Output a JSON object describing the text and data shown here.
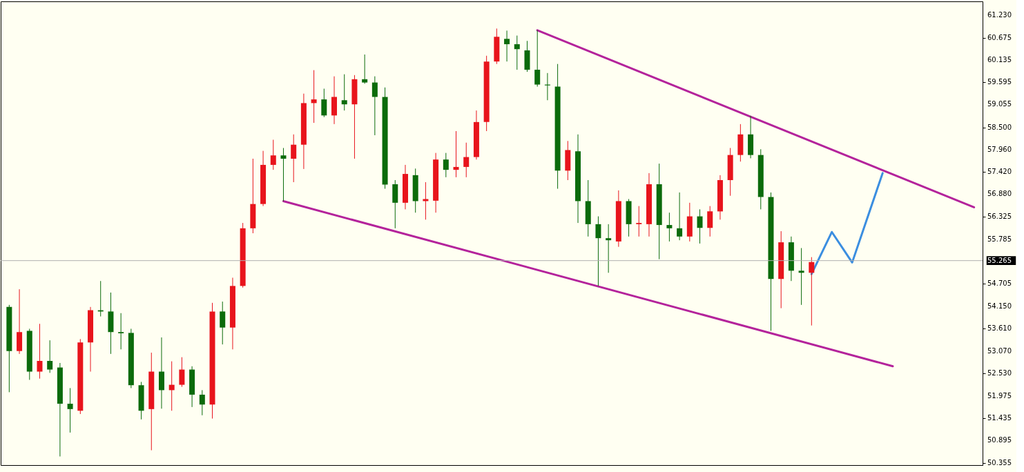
{
  "chart_data": {
    "type": "candlestick",
    "categories": [
      null,
      null,
      null,
      null,
      null,
      null,
      null,
      null,
      null,
      null,
      null,
      null,
      null,
      null,
      null,
      null,
      null,
      null,
      null,
      null,
      null,
      null,
      null,
      null,
      null,
      null,
      null,
      null,
      null,
      null,
      null,
      null,
      null,
      null,
      null,
      null,
      null,
      null,
      null,
      null,
      null,
      null,
      null,
      null,
      null,
      null,
      null,
      null,
      null,
      null,
      null,
      null,
      null,
      null,
      null,
      null,
      null,
      null,
      null,
      null,
      null,
      null,
      null,
      null,
      null,
      null,
      null,
      null,
      null,
      null,
      null,
      null,
      null,
      null,
      null,
      null,
      null,
      null,
      null,
      null,
      null,
      null,
      null,
      null,
      null,
      null,
      null,
      null,
      null,
      null,
      null,
      null,
      null,
      null,
      null,
      null
    ],
    "series": [
      {
        "type": "candlestick",
        "ohlc": [
          [
            54.14,
            54.19,
            52.07,
            53.07
          ],
          [
            53.07,
            54.57,
            53.0,
            53.53
          ],
          [
            53.56,
            53.61,
            52.37,
            52.57
          ],
          [
            52.57,
            53.73,
            52.4,
            52.83
          ],
          [
            52.83,
            53.33,
            52.54,
            52.62
          ],
          [
            52.67,
            52.78,
            50.51,
            51.79
          ],
          [
            51.79,
            52.17,
            51.09,
            51.66
          ],
          [
            51.62,
            53.36,
            51.54,
            53.28
          ],
          [
            53.28,
            54.14,
            52.57,
            54.06
          ],
          [
            54.06,
            54.77,
            53.91,
            54.03
          ],
          [
            54.03,
            54.49,
            53.0,
            53.53
          ],
          [
            53.53,
            53.99,
            53.11,
            53.5
          ],
          [
            53.51,
            53.61,
            52.17,
            52.24
          ],
          [
            52.24,
            52.32,
            51.41,
            51.62
          ],
          [
            51.66,
            53.03,
            50.66,
            52.57
          ],
          [
            52.57,
            53.4,
            51.67,
            52.12
          ],
          [
            52.12,
            52.82,
            51.62,
            52.25
          ],
          [
            52.25,
            52.92,
            52.2,
            52.62
          ],
          [
            52.62,
            52.7,
            51.71,
            52.01
          ],
          [
            52.01,
            52.12,
            51.51,
            51.77
          ],
          [
            51.77,
            54.24,
            51.43,
            54.03
          ],
          [
            54.03,
            54.27,
            53.23,
            53.64
          ],
          [
            53.64,
            54.85,
            53.11,
            54.65
          ],
          [
            54.65,
            56.18,
            54.61,
            56.05
          ],
          [
            56.05,
            57.74,
            55.93,
            56.64
          ],
          [
            56.64,
            57.93,
            56.59,
            57.59
          ],
          [
            57.59,
            58.2,
            57.47,
            57.82
          ],
          [
            57.82,
            58.0,
            56.71,
            57.74
          ],
          [
            57.74,
            58.33,
            57.17,
            58.08
          ],
          [
            58.08,
            59.32,
            57.49,
            59.09
          ],
          [
            59.09,
            59.89,
            58.61,
            59.18
          ],
          [
            59.18,
            59.44,
            58.75,
            58.79
          ],
          [
            58.79,
            59.74,
            58.58,
            59.24
          ],
          [
            59.16,
            59.79,
            58.91,
            59.06
          ],
          [
            59.06,
            59.77,
            57.74,
            59.67
          ],
          [
            59.67,
            60.27,
            59.56,
            59.59
          ],
          [
            59.59,
            59.74,
            58.31,
            59.24
          ],
          [
            59.24,
            59.47,
            57.01,
            57.11
          ],
          [
            57.12,
            57.22,
            56.05,
            56.67
          ],
          [
            56.67,
            57.59,
            56.51,
            57.37
          ],
          [
            57.34,
            57.5,
            56.43,
            56.71
          ],
          [
            56.71,
            57.17,
            56.26,
            56.76
          ],
          [
            56.72,
            57.88,
            56.43,
            57.72
          ],
          [
            57.72,
            57.88,
            57.29,
            57.47
          ],
          [
            57.47,
            58.41,
            57.29,
            57.54
          ],
          [
            57.54,
            58.13,
            57.29,
            57.78
          ],
          [
            57.78,
            58.91,
            57.72,
            58.63
          ],
          [
            58.63,
            60.24,
            58.41,
            60.1
          ],
          [
            60.1,
            60.9,
            60.04,
            60.7
          ],
          [
            60.65,
            60.85,
            60.1,
            60.52
          ],
          [
            60.52,
            60.73,
            59.9,
            60.4
          ],
          [
            60.37,
            60.6,
            59.85,
            59.9
          ],
          [
            59.9,
            60.86,
            59.49,
            59.54
          ],
          [
            59.54,
            59.82,
            59.16,
            59.52
          ],
          [
            59.49,
            60.04,
            57.01,
            57.45
          ],
          [
            57.45,
            58.17,
            57.22,
            57.95
          ],
          [
            57.92,
            58.33,
            56.18,
            56.71
          ],
          [
            56.71,
            57.22,
            55.85,
            56.15
          ],
          [
            56.15,
            56.34,
            54.65,
            55.81
          ],
          [
            55.81,
            56.15,
            54.97,
            55.76
          ],
          [
            55.73,
            56.97,
            55.6,
            56.71
          ],
          [
            56.71,
            56.76,
            55.85,
            56.15
          ],
          [
            56.15,
            56.59,
            55.85,
            56.18
          ],
          [
            56.15,
            57.39,
            55.85,
            57.12
          ],
          [
            57.12,
            57.62,
            55.3,
            56.13
          ],
          [
            56.13,
            56.43,
            55.73,
            56.05
          ],
          [
            56.05,
            56.92,
            55.76,
            55.85
          ],
          [
            55.85,
            56.67,
            55.73,
            56.34
          ],
          [
            56.34,
            56.51,
            55.68,
            56.06
          ],
          [
            56.06,
            56.59,
            55.85,
            56.46
          ],
          [
            56.46,
            57.34,
            56.26,
            57.22
          ],
          [
            57.22,
            58.0,
            56.84,
            57.83
          ],
          [
            57.83,
            58.58,
            57.67,
            58.33
          ],
          [
            58.33,
            58.78,
            57.75,
            57.83
          ],
          [
            57.83,
            57.97,
            56.51,
            56.81
          ],
          [
            56.81,
            56.92,
            53.56,
            54.82
          ],
          [
            54.82,
            55.98,
            54.11,
            55.71
          ],
          [
            55.71,
            55.85,
            54.77,
            55.02
          ],
          [
            55.02,
            55.57,
            54.19,
            54.97
          ],
          [
            54.97,
            55.35,
            53.69,
            55.23
          ],
          null,
          null,
          null,
          null,
          null,
          null,
          null,
          null,
          null,
          null,
          null,
          null,
          null,
          null,
          null,
          null
        ],
        "colors": [
          "#0b6b0b",
          "#e8141c",
          "#0b6b0b",
          "#e8141c",
          "#0b6b0b",
          "#0b6b0b",
          "#0b6b0b",
          "#e8141c",
          "#e8141c",
          "#0b6b0b",
          "#0b6b0b",
          "#0b6b0b",
          "#0b6b0b",
          "#0b6b0b",
          "#e8141c",
          "#0b6b0b",
          "#e8141c",
          "#e8141c",
          "#0b6b0b",
          "#0b6b0b",
          "#e8141c",
          "#0b6b0b",
          "#e8141c",
          "#e8141c",
          "#e8141c",
          "#e8141c",
          "#e8141c",
          "#0b6b0b",
          "#e8141c",
          "#e8141c",
          "#e8141c",
          "#0b6b0b",
          "#e8141c",
          "#0b6b0b",
          "#e8141c",
          "#0b6b0b",
          "#0b6b0b",
          "#0b6b0b",
          "#0b6b0b",
          "#e8141c",
          "#0b6b0b",
          "#e8141c",
          "#e8141c",
          "#0b6b0b",
          "#e8141c",
          "#e8141c",
          "#e8141c",
          "#e8141c",
          "#e8141c",
          "#0b6b0b",
          "#0b6b0b",
          "#0b6b0b",
          "#0b6b0b",
          "#0b6b0b",
          "#0b6b0b",
          "#e8141c",
          "#0b6b0b",
          "#0b6b0b",
          "#0b6b0b",
          "#0b6b0b",
          "#e8141c",
          "#0b6b0b",
          "#e8141c",
          "#e8141c",
          "#0b6b0b",
          "#0b6b0b",
          "#0b6b0b",
          "#e8141c",
          "#0b6b0b",
          "#e8141c",
          "#e8141c",
          "#e8141c",
          "#e8141c",
          "#0b6b0b",
          "#0b6b0b",
          "#0b6b0b",
          "#e8141c",
          "#0b6b0b",
          "#0b6b0b",
          "#e8141c",
          null,
          null,
          null,
          null,
          null,
          null,
          null,
          null,
          null,
          null,
          null,
          null,
          null,
          null,
          null,
          null
        ]
      },
      {
        "type": "line",
        "color": "#b4239b",
        "values": [
          null,
          null,
          null,
          null,
          null,
          null,
          null,
          null,
          null,
          null,
          null,
          null,
          null,
          null,
          null,
          null,
          null,
          null,
          null,
          null,
          null,
          null,
          null,
          null,
          null,
          null,
          null,
          56.71,
          null,
          null,
          null,
          null,
          null,
          null,
          null,
          null,
          null,
          null,
          null,
          null,
          null,
          null,
          null,
          null,
          null,
          null,
          null,
          null,
          null,
          null,
          null,
          null,
          null,
          null,
          null,
          null,
          null,
          null,
          null,
          null,
          null,
          null,
          null,
          null,
          null,
          null,
          null,
          null,
          null,
          null,
          null,
          null,
          null,
          null,
          null,
          null,
          null,
          null,
          null,
          null,
          null,
          null,
          null,
          null,
          null,
          null,
          null,
          52.7,
          null,
          null,
          null,
          null,
          null,
          null,
          null,
          null
        ]
      },
      {
        "type": "line",
        "color": "#b4239b",
        "values": [
          null,
          null,
          null,
          null,
          null,
          null,
          null,
          null,
          null,
          null,
          null,
          null,
          null,
          null,
          null,
          null,
          null,
          null,
          null,
          null,
          null,
          null,
          null,
          null,
          null,
          null,
          null,
          null,
          null,
          null,
          null,
          null,
          null,
          null,
          null,
          null,
          null,
          null,
          null,
          null,
          null,
          null,
          null,
          null,
          null,
          null,
          null,
          null,
          null,
          null,
          null,
          null,
          60.86,
          null,
          null,
          null,
          null,
          null,
          null,
          null,
          null,
          null,
          null,
          null,
          null,
          null,
          null,
          null,
          null,
          null,
          null,
          null,
          null,
          null,
          null,
          null,
          null,
          null,
          null,
          null,
          null,
          null,
          null,
          null,
          null,
          null,
          null,
          null,
          null,
          null,
          null,
          null,
          null,
          null,
          null,
          56.56
        ]
      },
      {
        "type": "line",
        "color": "#3b8ee0",
        "values": [
          null,
          null,
          null,
          null,
          null,
          null,
          null,
          null,
          null,
          null,
          null,
          null,
          null,
          null,
          null,
          null,
          null,
          null,
          null,
          null,
          null,
          null,
          null,
          null,
          null,
          null,
          null,
          null,
          null,
          null,
          null,
          null,
          null,
          null,
          null,
          null,
          null,
          null,
          null,
          null,
          null,
          null,
          null,
          null,
          null,
          null,
          null,
          null,
          null,
          null,
          null,
          null,
          null,
          null,
          null,
          null,
          null,
          null,
          null,
          null,
          null,
          null,
          null,
          null,
          null,
          null,
          null,
          null,
          null,
          null,
          null,
          null,
          null,
          null,
          null,
          null,
          null,
          null,
          null,
          54.94,
          null,
          55.96,
          null,
          55.22,
          null,
          null,
          57.39,
          null,
          null,
          null,
          null,
          null,
          null,
          null,
          null,
          null
        ]
      }
    ],
    "ylim": [
      50.3,
      61.56
    ],
    "yticks": [
      {
        "value": 61.23,
        "label": "61.230"
      },
      60.675,
      60.135,
      59.595,
      59.055,
      {
        "value": 58.5,
        "label": "58.500"
      },
      {
        "value": 57.96,
        "label": "57.960"
      },
      {
        "value": 57.42,
        "label": "57.420"
      },
      {
        "value": 56.88,
        "label": "56.880"
      },
      56.325,
      55.785,
      54.705,
      {
        "value": 54.15,
        "label": "54.150"
      },
      {
        "value": 53.61,
        "label": "53.610"
      },
      {
        "value": 53.07,
        "label": "53.070"
      },
      {
        "value": 52.53,
        "label": "52.530"
      },
      51.975,
      51.435,
      50.895,
      50.355
    ],
    "ref_lines": [
      {
        "axis": "y",
        "value": 55.265,
        "label": "55.265",
        "color": "#b0b0b0"
      }
    ],
    "tick_labels": "y",
    "grid": false
  }
}
